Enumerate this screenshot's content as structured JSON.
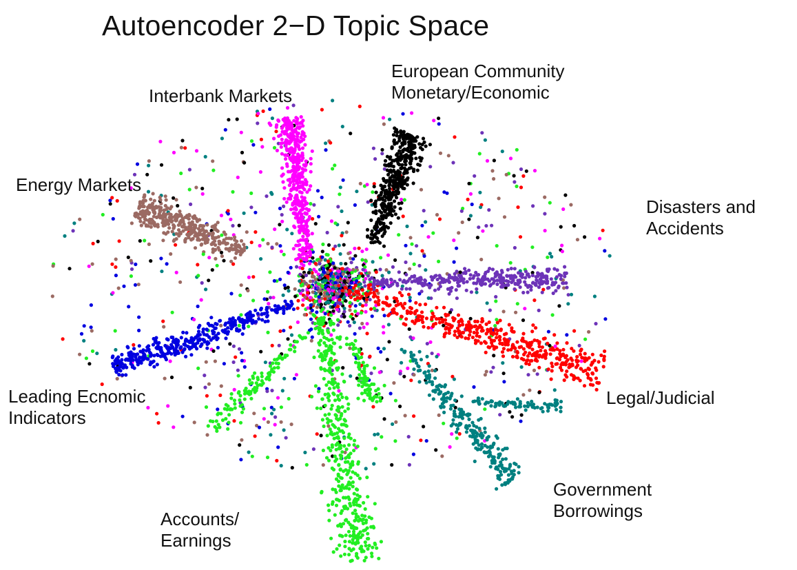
{
  "title": "Autoencoder 2−D Topic Space",
  "labels": {
    "european": "European Community\nMonetary/Economic",
    "interbank": "Interbank Markets",
    "energy": "Energy Markets",
    "disasters": "Disasters and\nAccidents",
    "leading": "Leading Ecnomic\nIndicators",
    "legal": "Legal/Judicial",
    "government": "Government\nBorrowings",
    "accounts": "Accounts/\nEarnings"
  },
  "chart_data": {
    "type": "scatter",
    "title": "Autoencoder 2−D Topic Space",
    "xlabel": "",
    "ylabel": "",
    "axes_visible": false,
    "grid": false,
    "legend": "none",
    "center": [
      0,
      0
    ],
    "note_on_coordinates": "",
    "series": [
      {
        "name": "European Community Monetary/Economic",
        "color": "#000000",
        "arms": [
          {
            "from": [
              55,
              60
            ],
            "to": [
              115,
              220
            ],
            "width": 18,
            "count": 420
          }
        ]
      },
      {
        "name": "Interbank Markets",
        "color": "#ff00ff",
        "arms": [
          {
            "from": [
              -40,
              30
            ],
            "to": [
              -65,
              245
            ],
            "width": 16,
            "count": 420
          }
        ]
      },
      {
        "name": "Energy Markets",
        "color": "#9b6a63",
        "arms": [
          {
            "from": [
              -130,
              50
            ],
            "to": [
              -285,
              115
            ],
            "width": 18,
            "count": 360
          }
        ]
      },
      {
        "name": "Disasters and Accidents",
        "color": "#6d33b8",
        "arms": [
          {
            "from": [
              40,
              5
            ],
            "to": [
              340,
              10
            ],
            "width": 14,
            "count": 320
          }
        ]
      },
      {
        "name": "Leading Economic Indicators",
        "color": "#0000e0",
        "arms": [
          {
            "from": [
              -60,
              -25
            ],
            "to": [
              -320,
              -120
            ],
            "width": 14,
            "count": 380
          }
        ]
      },
      {
        "name": "Legal/Judicial",
        "color": "#ff0000",
        "arms": [
          {
            "from": [
              10,
              -5
            ],
            "to": [
              390,
              -125
            ],
            "width": 18,
            "count": 440
          }
        ]
      },
      {
        "name": "Government Borrowings",
        "color": "#008080",
        "arms": [
          {
            "from": [
              100,
              -90
            ],
            "to": [
              260,
              -280
            ],
            "width": 14,
            "count": 240
          },
          {
            "from": [
              200,
              -170
            ],
            "to": [
              330,
              -175
            ],
            "width": 8,
            "count": 80
          }
        ]
      },
      {
        "name": "Accounts/Earnings",
        "color": "#22ee22",
        "arms": [
          {
            "from": [
              -20,
              -30
            ],
            "to": [
              35,
              -400
            ],
            "width": 22,
            "count": 420
          },
          {
            "from": [
              -30,
              -60
            ],
            "to": [
              -180,
              -210
            ],
            "width": 10,
            "count": 110
          },
          {
            "from": [
              20,
              -70
            ],
            "to": [
              60,
              -170
            ],
            "width": 9,
            "count": 80
          }
        ]
      }
    ],
    "background_scatter": {
      "count": 900,
      "colors": [
        "#000000",
        "#ff00ff",
        "#9b6a63",
        "#6d33b8",
        "#0000e0",
        "#ff0000",
        "#008080",
        "#22ee22"
      ]
    }
  }
}
